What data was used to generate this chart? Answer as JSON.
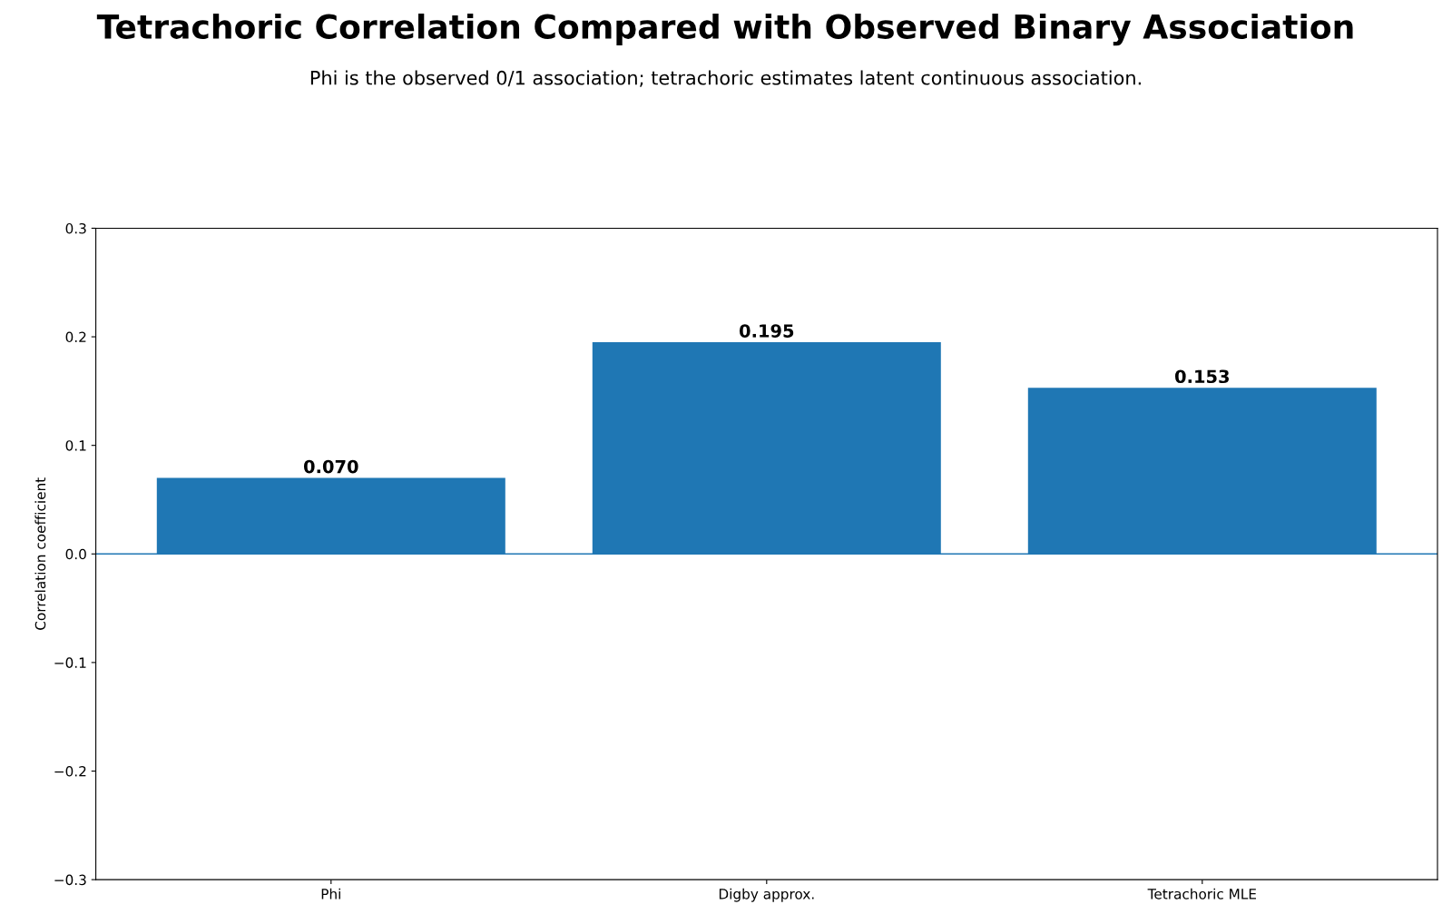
{
  "chart_data": {
    "type": "bar",
    "title": "Tetrachoric Correlation Compared with Observed Binary Association",
    "subtitle": "Phi is the observed 0/1 association; tetrachoric estimates latent continuous association.",
    "ylabel": "Correlation coefficient",
    "categories": [
      "Phi",
      "Digby approx.",
      "Tetrachoric MLE"
    ],
    "values": [
      0.07,
      0.195,
      0.153
    ],
    "value_labels": [
      "0.070",
      "0.195",
      "0.153"
    ],
    "color": "#1f77b4",
    "ylim": [
      -0.3,
      0.3
    ],
    "yticks": [
      {
        "value": -0.3,
        "label": "−0.3"
      },
      {
        "value": -0.2,
        "label": "−0.2"
      },
      {
        "value": -0.1,
        "label": "−0.1"
      },
      {
        "value": 0,
        "label": "0.0"
      },
      0.1,
      0.2,
      0.3
    ],
    "ref_lines": [
      {
        "axis": "y",
        "value": 0,
        "color": "#1f77b4"
      }
    ],
    "grid": false
  }
}
